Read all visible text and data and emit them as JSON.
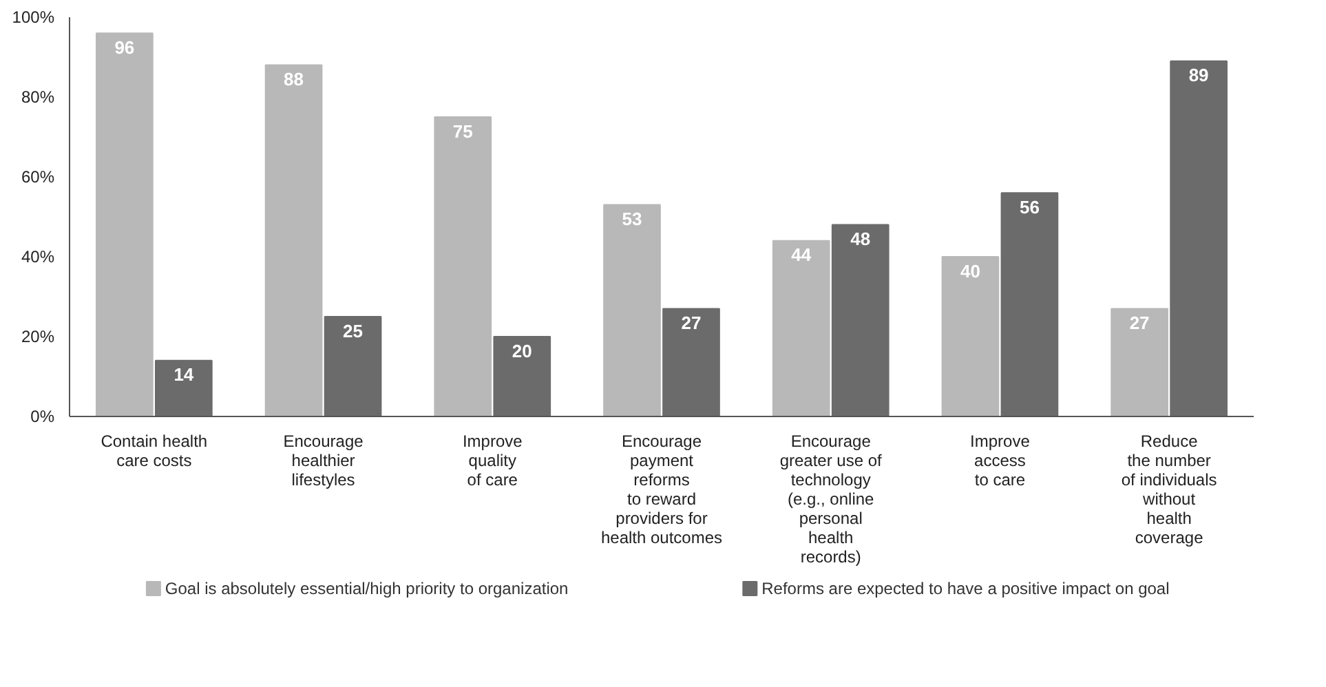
{
  "chart_data": {
    "type": "bar",
    "categories": [
      "Contain health\ncare costs",
      "Encourage\nhealthier\nlifestyles",
      "Improve\nquality\nof care",
      "Encourage\npayment\nreforms\nto reward\nproviders for\nhealth outcomes",
      "Encourage\ngreater use of\ntechnology\n(e.g., online\npersonal\nhealth\nrecords)",
      "Improve\naccess\nto care",
      "Reduce\nthe number\nof individuals\nwithout\nhealth\ncoverage"
    ],
    "series": [
      {
        "name": "Goal is absolutely essential/high priority to organization",
        "color": "#b8b8b8",
        "values": [
          96,
          88,
          75,
          53,
          44,
          40,
          27
        ]
      },
      {
        "name": "Reforms are expected to have a positive impact on goal",
        "color": "#6b6b6b",
        "values": [
          14,
          25,
          20,
          27,
          48,
          56,
          89
        ]
      }
    ],
    "ylim": [
      0,
      100
    ],
    "yticks": [
      {
        "value": 0,
        "label": "0%"
      },
      {
        "value": 20,
        "label": "20%"
      },
      {
        "value": 40,
        "label": "40%"
      },
      {
        "value": 60,
        "label": "60%"
      },
      {
        "value": 80,
        "label": "80%"
      },
      {
        "value": 100,
        "label": "100%"
      }
    ],
    "data_labels": true,
    "grid": false,
    "legend": "bottom"
  }
}
